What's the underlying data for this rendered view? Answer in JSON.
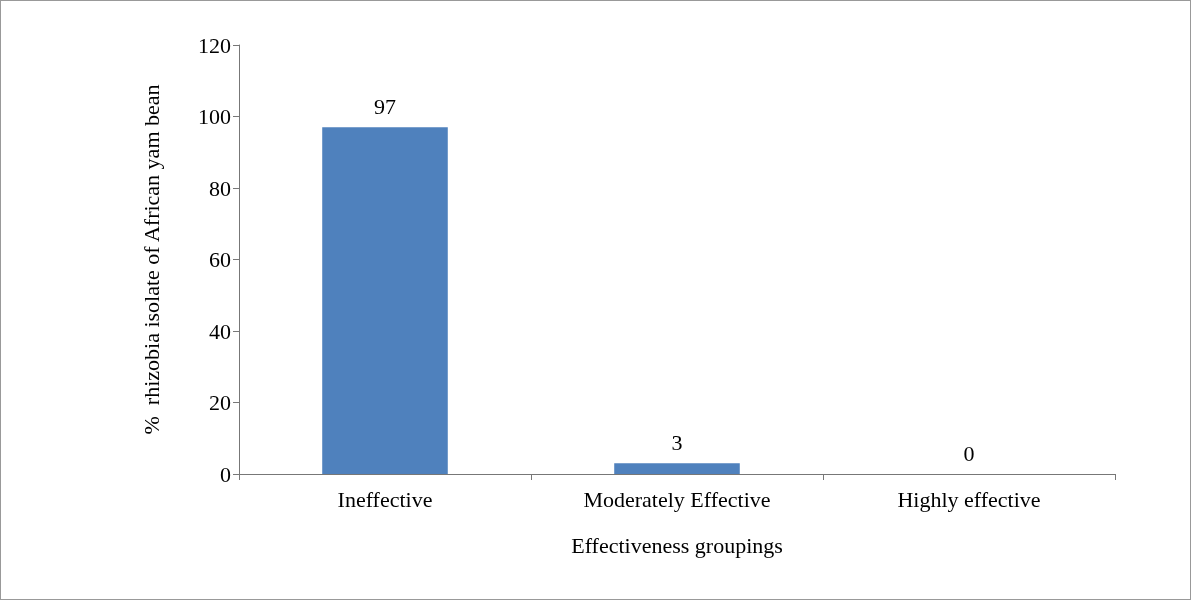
{
  "chart_data": {
    "type": "bar",
    "xlabel": "Effectiveness groupings",
    "ylabel": "%  rhizobia isolate of African yam bean",
    "categories": [
      "Ineffective",
      "Moderately Effective",
      "Highly effective"
    ],
    "values": [
      97,
      3,
      0
    ],
    "color": "#4f81bd",
    "ylim": [
      0,
      120
    ],
    "yticks": [
      0,
      20,
      40,
      60,
      80,
      100,
      120
    ],
    "grid": false,
    "data_labels": true
  }
}
